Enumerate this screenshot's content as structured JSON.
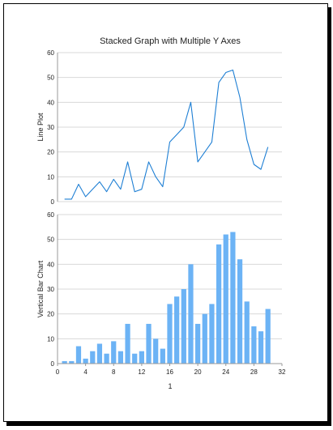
{
  "chart_data": {
    "type": "bar",
    "title": "Stacked Graph with Multiple Y Axes",
    "xlabel": "1",
    "xlim": [
      0,
      32
    ],
    "x_ticks": [
      "0",
      "4",
      "8",
      "12",
      "16",
      "20",
      "24",
      "28",
      "32"
    ],
    "grid": true,
    "colors": {
      "line": "#1e7fd4",
      "bar": "#6cb3f5",
      "grid": "#d8d8d8",
      "axis": "#999999"
    },
    "x": [
      1,
      2,
      3,
      4,
      5,
      6,
      7,
      8,
      9,
      10,
      11,
      12,
      13,
      14,
      15,
      16,
      17,
      18,
      19,
      20,
      21,
      22,
      23,
      24,
      25,
      26,
      27,
      28,
      29,
      30
    ],
    "panels": [
      {
        "type": "line",
        "ylabel": "Line Plot",
        "ylim": [
          0,
          60
        ],
        "y_ticks": [
          "0",
          "10",
          "20",
          "30",
          "40",
          "50",
          "60"
        ],
        "series": [
          {
            "values": [
              1,
              1,
              7,
              2,
              5,
              8,
              4,
              9,
              5,
              16,
              4,
              5,
              16,
              10,
              6,
              24,
              27,
              30,
              40,
              16,
              20,
              24,
              48,
              52,
              53,
              42,
              25,
              15,
              13,
              22
            ]
          }
        ]
      },
      {
        "type": "bar",
        "ylabel": "Vertical Bar Chart",
        "ylim": [
          0,
          60
        ],
        "y_ticks": [
          "0",
          "10",
          "20",
          "30",
          "40",
          "50",
          "60"
        ],
        "series": [
          {
            "values": [
              1,
              1,
              7,
              2,
              5,
              8,
              4,
              9,
              5,
              16,
              4,
              5,
              16,
              10,
              6,
              24,
              27,
              30,
              40,
              16,
              20,
              24,
              48,
              52,
              53,
              42,
              25,
              15,
              13,
              22
            ]
          }
        ]
      }
    ]
  }
}
